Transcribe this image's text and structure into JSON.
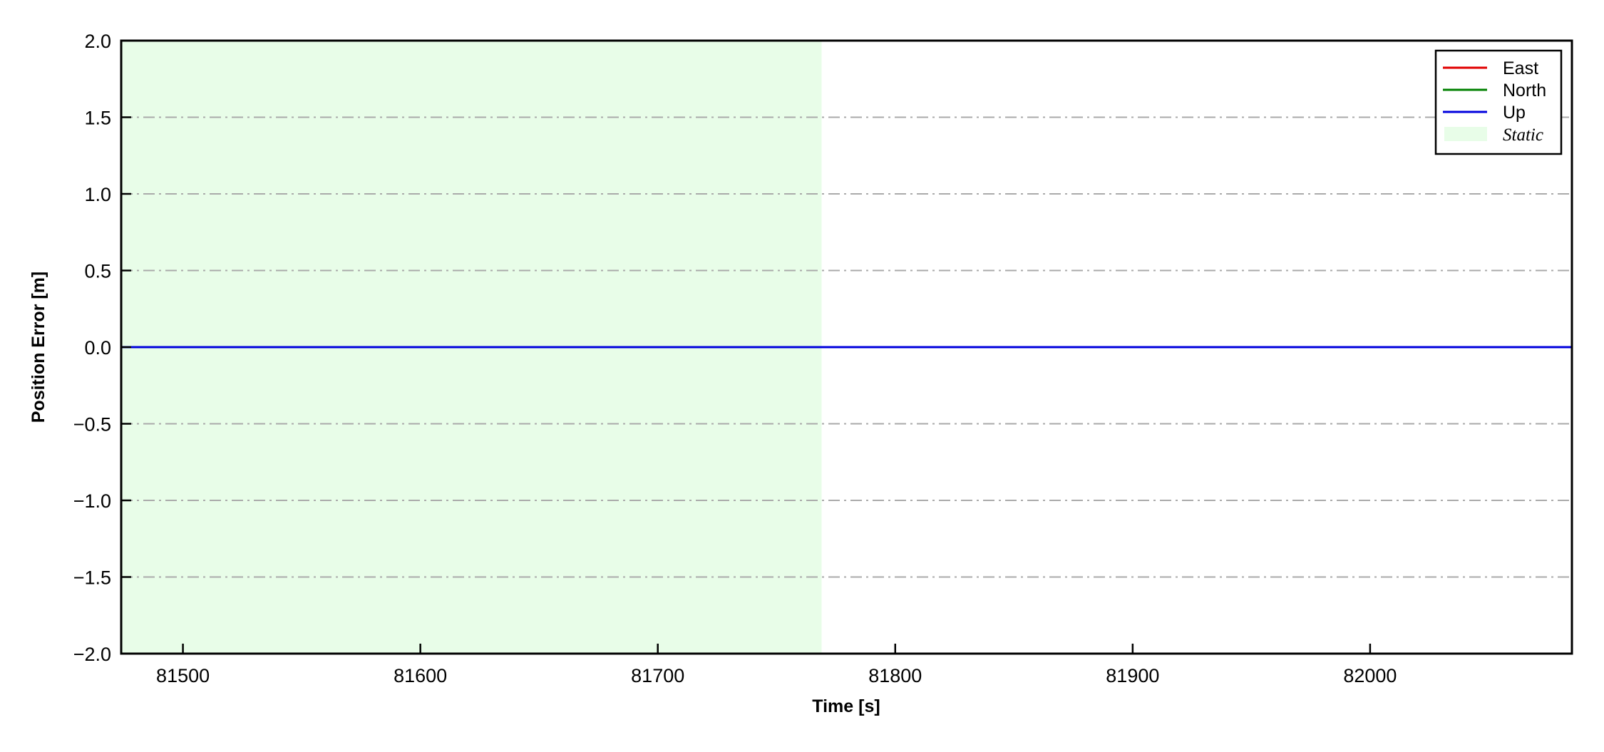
{
  "chart_data": {
    "type": "line",
    "title": "",
    "xlabel": "Time [s]",
    "ylabel": "Position Error [m]",
    "xlim": [
      81474,
      82085
    ],
    "ylim": [
      -2.0,
      2.0
    ],
    "xticks": [
      81500,
      81600,
      81700,
      81800,
      81900,
      82000
    ],
    "xtick_labels": [
      "81500",
      "81600",
      "81700",
      "81800",
      "81900",
      "82000"
    ],
    "yticks": [
      -2.0,
      -1.5,
      -1.0,
      -0.5,
      0.0,
      0.5,
      1.0,
      1.5,
      2.0
    ],
    "ytick_labels": [
      "−2.0",
      "−1.5",
      "−1.0",
      "−0.5",
      "0.0",
      "0.5",
      "1.0",
      "1.5",
      "2.0"
    ],
    "grid": {
      "axis": "y",
      "style": "dash-dot",
      "color": "#aaaaaa"
    },
    "legend_placement": "top-right",
    "series": [
      {
        "name": "East",
        "color": "#e00000",
        "x": [
          81474,
          82085
        ],
        "y": [
          0.0,
          0.0
        ]
      },
      {
        "name": "North",
        "color": "#008000",
        "x": [
          81474,
          82085
        ],
        "y": [
          0.0,
          0.0
        ]
      },
      {
        "name": "Up",
        "color": "#0000dd",
        "x": [
          81474,
          82085
        ],
        "y": [
          0.0,
          0.0
        ]
      }
    ],
    "shaded_regions": [
      {
        "name": "Static",
        "x_start": 81474,
        "x_end": 81769,
        "color": "#e8fde8"
      }
    ]
  }
}
